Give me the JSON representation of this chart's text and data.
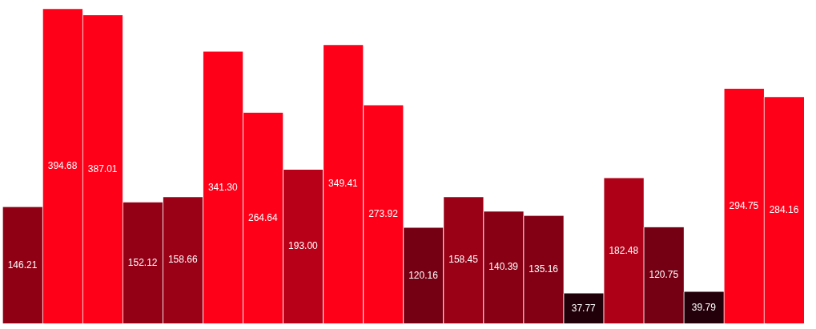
{
  "chart_data": {
    "type": "bar",
    "categories": [
      null,
      null,
      null,
      null,
      null,
      null,
      null,
      null,
      null,
      null,
      null,
      null,
      null,
      null,
      null,
      null,
      null,
      null,
      null,
      null
    ],
    "values": [
      146.21,
      394.68,
      387.01,
      152.12,
      158.66,
      341.3,
      264.64,
      193.0,
      349.41,
      273.92,
      120.16,
      158.45,
      140.39,
      135.16,
      37.77,
      182.48,
      120.75,
      39.79,
      294.75,
      284.16
    ],
    "value_labels": [
      "146.21",
      "394.68",
      "387.01",
      "152.12",
      "158.66",
      "341.30",
      "264.64",
      "193.00",
      "349.41",
      "273.92",
      "120.16",
      "158.45",
      "140.39",
      "135.16",
      "37.77",
      "182.48",
      "120.75",
      "39.79",
      "294.75",
      "284.16"
    ],
    "colors": [
      "#8f0015",
      "#ff0019",
      "#ff0019",
      "#930015",
      "#9a0016",
      "#ff0019",
      "#ff0019",
      "#b80018",
      "#ff0019",
      "#ff0019",
      "#760013",
      "#9a0016",
      "#880014",
      "#830014",
      "#22000a",
      "#ae0017",
      "#760013",
      "#24000a",
      "#ff0019",
      "#ff0019"
    ],
    "legend": false
  }
}
